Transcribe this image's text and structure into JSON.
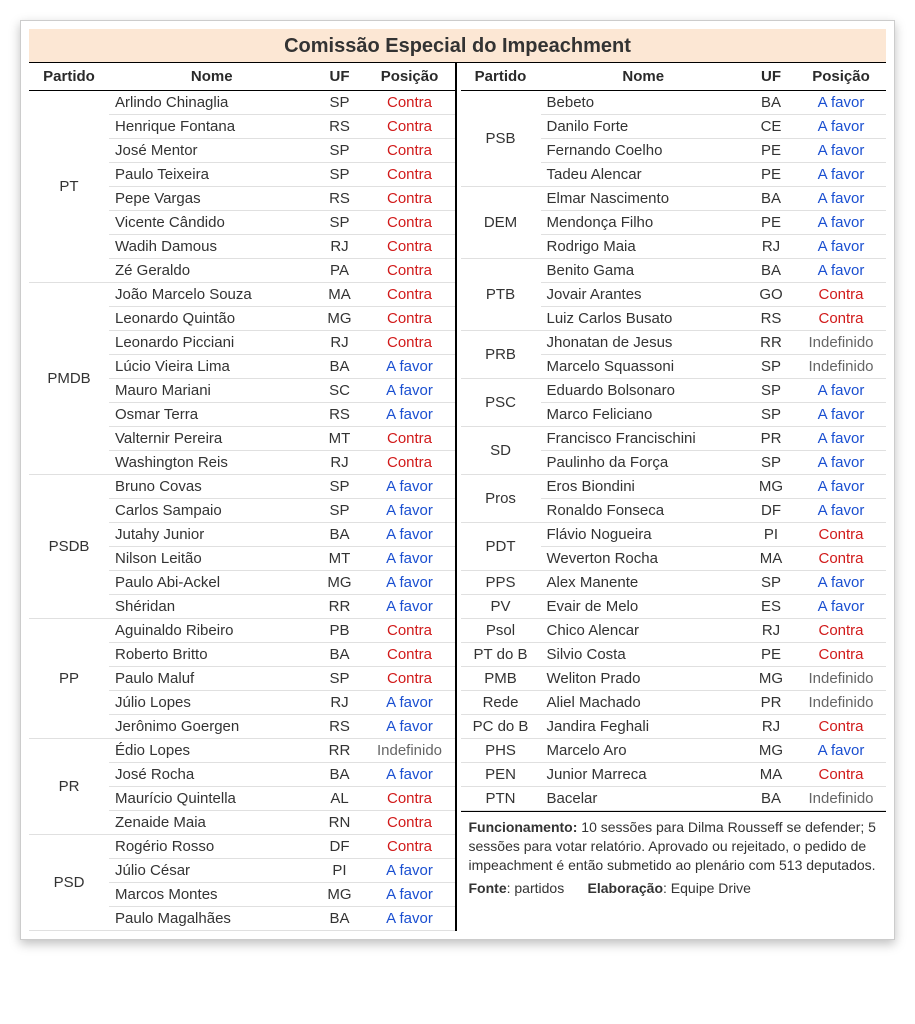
{
  "title": "Comissão Especial do Impeachment",
  "headers": {
    "partido": "Partido",
    "nome": "Nome",
    "uf": "UF",
    "posicao": "Posição"
  },
  "pos_labels": {
    "contra": "Contra",
    "afavor": "A favor",
    "indef": "Indefinido"
  },
  "colors": {
    "contra": "#d11a1a",
    "afavor": "#1a4fd1",
    "indef": "#666666",
    "title_bg": "#fce7d4"
  },
  "left": [
    {
      "party": "PT",
      "members": [
        {
          "nome": "Arlindo Chinaglia",
          "uf": "SP",
          "pos": "contra"
        },
        {
          "nome": "Henrique Fontana",
          "uf": "RS",
          "pos": "contra"
        },
        {
          "nome": "José Mentor",
          "uf": "SP",
          "pos": "contra"
        },
        {
          "nome": "Paulo Teixeira",
          "uf": "SP",
          "pos": "contra"
        },
        {
          "nome": "Pepe Vargas",
          "uf": "RS",
          "pos": "contra"
        },
        {
          "nome": "Vicente Cândido",
          "uf": "SP",
          "pos": "contra"
        },
        {
          "nome": "Wadih Damous",
          "uf": "RJ",
          "pos": "contra"
        },
        {
          "nome": "Zé Geraldo",
          "uf": "PA",
          "pos": "contra"
        }
      ]
    },
    {
      "party": "PMDB",
      "members": [
        {
          "nome": "João Marcelo Souza",
          "uf": "MA",
          "pos": "contra"
        },
        {
          "nome": "Leonardo Quintão",
          "uf": "MG",
          "pos": "contra"
        },
        {
          "nome": "Leonardo Picciani",
          "uf": "RJ",
          "pos": "contra"
        },
        {
          "nome": "Lúcio Vieira Lima",
          "uf": "BA",
          "pos": "afavor"
        },
        {
          "nome": "Mauro Mariani",
          "uf": "SC",
          "pos": "afavor"
        },
        {
          "nome": "Osmar Terra",
          "uf": "RS",
          "pos": "afavor"
        },
        {
          "nome": "Valternir Pereira",
          "uf": "MT",
          "pos": "contra"
        },
        {
          "nome": "Washington Reis",
          "uf": "RJ",
          "pos": "contra"
        }
      ]
    },
    {
      "party": "PSDB",
      "members": [
        {
          "nome": "Bruno Covas",
          "uf": "SP",
          "pos": "afavor"
        },
        {
          "nome": "Carlos Sampaio",
          "uf": "SP",
          "pos": "afavor"
        },
        {
          "nome": "Jutahy Junior",
          "uf": "BA",
          "pos": "afavor"
        },
        {
          "nome": "Nilson Leitão",
          "uf": "MT",
          "pos": "afavor"
        },
        {
          "nome": "Paulo Abi-Ackel",
          "uf": "MG",
          "pos": "afavor"
        },
        {
          "nome": "Shéridan",
          "uf": "RR",
          "pos": "afavor"
        }
      ]
    },
    {
      "party": "PP",
      "members": [
        {
          "nome": "Aguinaldo Ribeiro",
          "uf": "PB",
          "pos": "contra"
        },
        {
          "nome": "Roberto Britto",
          "uf": "BA",
          "pos": "contra"
        },
        {
          "nome": "Paulo Maluf",
          "uf": "SP",
          "pos": "contra"
        },
        {
          "nome": "Júlio Lopes",
          "uf": "RJ",
          "pos": "afavor"
        },
        {
          "nome": "Jerônimo Goergen",
          "uf": "RS",
          "pos": "afavor"
        }
      ]
    },
    {
      "party": "PR",
      "members": [
        {
          "nome": "Édio Lopes",
          "uf": "RR",
          "pos": "indef"
        },
        {
          "nome": "José Rocha",
          "uf": "BA",
          "pos": "afavor"
        },
        {
          "nome": "Maurício Quintella",
          "uf": "AL",
          "pos": "contra"
        },
        {
          "nome": "Zenaide Maia",
          "uf": "RN",
          "pos": "contra"
        }
      ]
    },
    {
      "party": "PSD",
      "members": [
        {
          "nome": "Rogério Rosso",
          "uf": "DF",
          "pos": "contra"
        },
        {
          "nome": "Júlio César",
          "uf": "PI",
          "pos": "afavor"
        },
        {
          "nome": "Marcos Montes",
          "uf": "MG",
          "pos": "afavor"
        },
        {
          "nome": "Paulo Magalhães",
          "uf": "BA",
          "pos": "afavor"
        }
      ]
    }
  ],
  "right": [
    {
      "party": "PSB",
      "members": [
        {
          "nome": "Bebeto",
          "uf": "BA",
          "pos": "afavor"
        },
        {
          "nome": "Danilo Forte",
          "uf": "CE",
          "pos": "afavor"
        },
        {
          "nome": "Fernando Coelho",
          "uf": "PE",
          "pos": "afavor"
        },
        {
          "nome": "Tadeu Alencar",
          "uf": "PE",
          "pos": "afavor"
        }
      ]
    },
    {
      "party": "DEM",
      "members": [
        {
          "nome": "Elmar Nascimento",
          "uf": "BA",
          "pos": "afavor"
        },
        {
          "nome": "Mendonça Filho",
          "uf": "PE",
          "pos": "afavor"
        },
        {
          "nome": "Rodrigo Maia",
          "uf": "RJ",
          "pos": "afavor"
        }
      ]
    },
    {
      "party": "PTB",
      "members": [
        {
          "nome": "Benito Gama",
          "uf": "BA",
          "pos": "afavor"
        },
        {
          "nome": "Jovair Arantes",
          "uf": "GO",
          "pos": "contra"
        },
        {
          "nome": "Luiz Carlos Busato",
          "uf": "RS",
          "pos": "contra"
        }
      ]
    },
    {
      "party": "PRB",
      "members": [
        {
          "nome": "Jhonatan de Jesus",
          "uf": "RR",
          "pos": "indef"
        },
        {
          "nome": "Marcelo Squassoni",
          "uf": "SP",
          "pos": "indef"
        }
      ]
    },
    {
      "party": "PSC",
      "members": [
        {
          "nome": "Eduardo Bolsonaro",
          "uf": "SP",
          "pos": "afavor"
        },
        {
          "nome": "Marco Feliciano",
          "uf": "SP",
          "pos": "afavor"
        }
      ]
    },
    {
      "party": "SD",
      "members": [
        {
          "nome": "Francisco Francischini",
          "uf": "PR",
          "pos": "afavor"
        },
        {
          "nome": "Paulinho da Força",
          "uf": "SP",
          "pos": "afavor"
        }
      ]
    },
    {
      "party": "Pros",
      "members": [
        {
          "nome": "Eros Biondini",
          "uf": "MG",
          "pos": "afavor"
        },
        {
          "nome": "Ronaldo Fonseca",
          "uf": "DF",
          "pos": "afavor"
        }
      ]
    },
    {
      "party": "PDT",
      "members": [
        {
          "nome": "Flávio Nogueira",
          "uf": "PI",
          "pos": "contra"
        },
        {
          "nome": "Weverton Rocha",
          "uf": "MA",
          "pos": "contra"
        }
      ]
    },
    {
      "party": "PPS",
      "members": [
        {
          "nome": "Alex Manente",
          "uf": "SP",
          "pos": "afavor"
        }
      ]
    },
    {
      "party": "PV",
      "members": [
        {
          "nome": "Evair de Melo",
          "uf": "ES",
          "pos": "afavor"
        }
      ]
    },
    {
      "party": "Psol",
      "members": [
        {
          "nome": "Chico Alencar",
          "uf": "RJ",
          "pos": "contra"
        }
      ]
    },
    {
      "party": "PT do B",
      "members": [
        {
          "nome": "Silvio Costa",
          "uf": "PE",
          "pos": "contra"
        }
      ]
    },
    {
      "party": "PMB",
      "members": [
        {
          "nome": "Weliton Prado",
          "uf": "MG",
          "pos": "indef"
        }
      ]
    },
    {
      "party": "Rede",
      "members": [
        {
          "nome": "Aliel Machado",
          "uf": "PR",
          "pos": "indef"
        }
      ]
    },
    {
      "party": "PC do B",
      "members": [
        {
          "nome": "Jandira Feghali",
          "uf": "RJ",
          "pos": "contra"
        }
      ]
    },
    {
      "party": "PHS",
      "members": [
        {
          "nome": "Marcelo Aro",
          "uf": "MG",
          "pos": "afavor"
        }
      ]
    },
    {
      "party": "PEN",
      "members": [
        {
          "nome": "Junior Marreca",
          "uf": "MA",
          "pos": "contra"
        }
      ]
    },
    {
      "party": "PTN",
      "members": [
        {
          "nome": "Bacelar",
          "uf": "BA",
          "pos": "indef"
        }
      ]
    }
  ],
  "footer": {
    "funcionamento_label": "Funcionamento:",
    "funcionamento_text": " 10 sessões para Dilma Rousseff se defender; 5 sessões para votar relatório. Aprovado ou rejeitado, o pedido de impeachment é então submetido ao plenário com 513 deputados.",
    "fonte_label": "Fonte",
    "fonte_text": ": partidos",
    "elab_label": "Elaboração",
    "elab_text": ": Equipe Drive"
  }
}
